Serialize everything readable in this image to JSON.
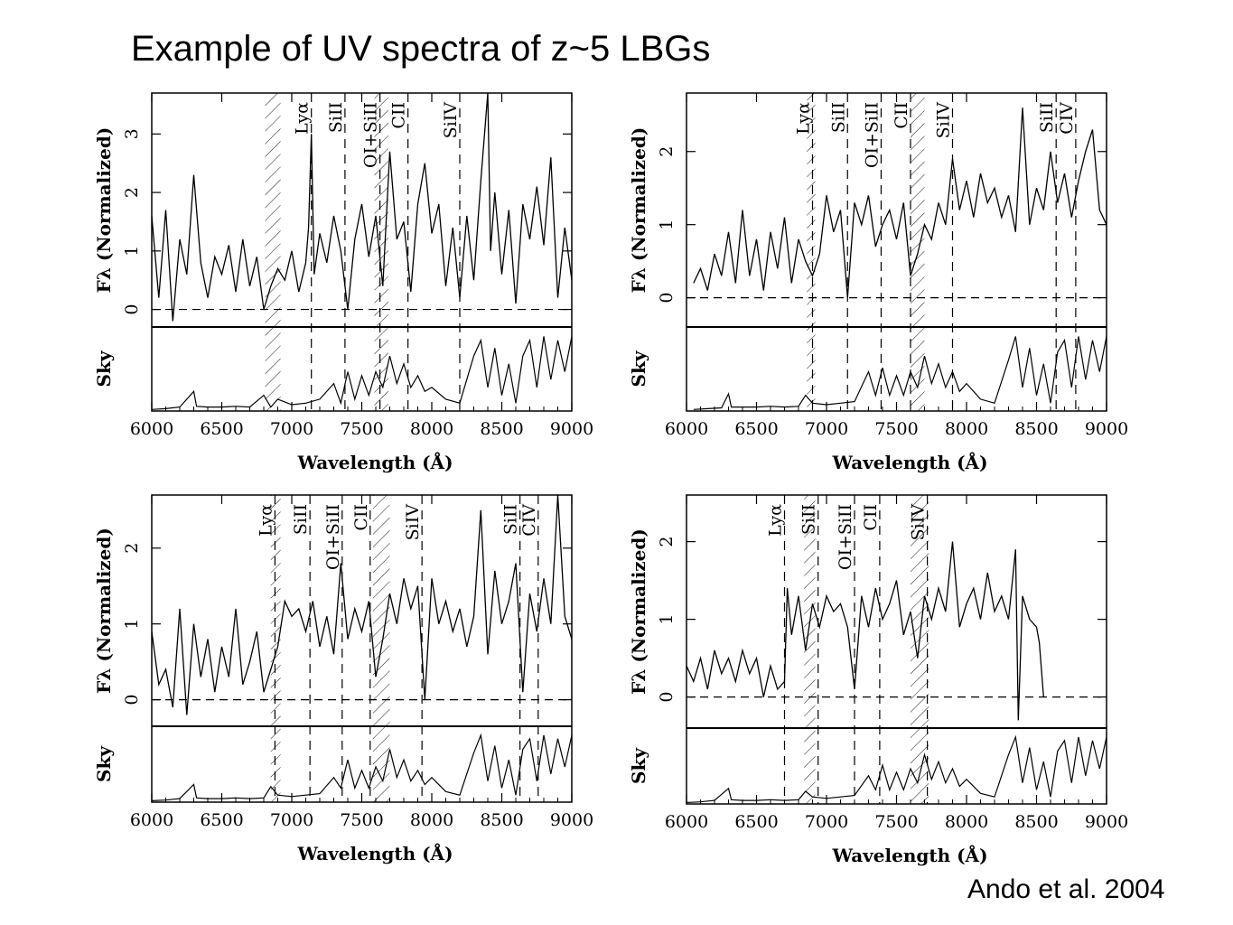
{
  "title": "Example of UV spectra of z~5 LBGs",
  "credit": "Ando et al. 2004",
  "colors": {
    "line": "#000000",
    "background": "#ffffff"
  },
  "chart_data": [
    {
      "type": "line",
      "panel": "top-left",
      "xlabel": "Wavelength (Å)",
      "ylabel": "Fλ (Normalized)",
      "sky_label": "Sky",
      "xlim": [
        6000,
        9000
      ],
      "ylim": [
        -0.3,
        3.7
      ],
      "xticks": [
        6000,
        6500,
        7000,
        7500,
        8000,
        8500,
        9000
      ],
      "yticks": [
        0,
        1,
        2,
        3
      ],
      "absorption_lines": [
        {
          "label": "Lyα",
          "x": 7140
        },
        {
          "label": "SiII",
          "x": 7380
        },
        {
          "label": "OI+SiII",
          "x": 7630
        },
        {
          "label": "CII",
          "x": 7830
        },
        {
          "label": "SiIV",
          "x": 8200
        }
      ],
      "sky_bands": [
        [
          6810,
          6920
        ],
        [
          7590,
          7690
        ]
      ],
      "flux": {
        "x": [
          6000,
          6050,
          6100,
          6150,
          6200,
          6250,
          6300,
          6350,
          6400,
          6450,
          6500,
          6550,
          6600,
          6650,
          6700,
          6750,
          6800,
          6850,
          6900,
          6950,
          7000,
          7050,
          7100,
          7120,
          7140,
          7160,
          7200,
          7250,
          7300,
          7350,
          7400,
          7450,
          7500,
          7550,
          7600,
          7650,
          7700,
          7750,
          7800,
          7850,
          7900,
          7950,
          8000,
          8050,
          8100,
          8150,
          8200,
          8250,
          8300,
          8350,
          8400,
          8420,
          8450,
          8500,
          8550,
          8600,
          8650,
          8700,
          8750,
          8800,
          8850,
          8900,
          8950,
          9000
        ],
        "y": [
          1.6,
          0.2,
          1.7,
          -0.2,
          1.2,
          0.6,
          2.3,
          0.8,
          0.2,
          0.9,
          0.6,
          1.1,
          0.3,
          1.2,
          0.4,
          0.9,
          0.0,
          0.4,
          0.7,
          0.5,
          1.0,
          0.3,
          0.8,
          1.4,
          3.0,
          0.6,
          1.3,
          0.8,
          1.6,
          1.0,
          0.0,
          1.2,
          1.8,
          0.9,
          1.6,
          0.4,
          2.7,
          1.2,
          1.5,
          0.3,
          1.8,
          2.5,
          1.3,
          1.8,
          0.4,
          1.4,
          0.2,
          1.6,
          0.5,
          2.2,
          3.7,
          1.0,
          2.0,
          0.6,
          1.7,
          0.1,
          1.8,
          1.2,
          2.1,
          1.1,
          2.6,
          0.2,
          1.4,
          0.5
        ]
      },
      "sky": {
        "x": [
          6000,
          6100,
          6200,
          6300,
          6320,
          6400,
          6500,
          6600,
          6700,
          6800,
          6850,
          6900,
          7000,
          7100,
          7200,
          7300,
          7350,
          7400,
          7450,
          7500,
          7550,
          7600,
          7650,
          7700,
          7750,
          7800,
          7850,
          7900,
          7950,
          8000,
          8100,
          8200,
          8300,
          8350,
          8400,
          8450,
          8500,
          8550,
          8600,
          8650,
          8700,
          8750,
          8800,
          8850,
          8900,
          8950,
          9000
        ],
        "y": [
          0.02,
          0.03,
          0.05,
          0.25,
          0.06,
          0.05,
          0.05,
          0.06,
          0.05,
          0.2,
          0.05,
          0.15,
          0.08,
          0.1,
          0.15,
          0.35,
          0.1,
          0.5,
          0.15,
          0.45,
          0.2,
          0.5,
          0.3,
          0.7,
          0.35,
          0.6,
          0.3,
          0.45,
          0.25,
          0.3,
          0.15,
          0.1,
          0.7,
          0.9,
          0.3,
          0.8,
          0.2,
          0.6,
          0.1,
          0.7,
          0.9,
          0.3,
          0.95,
          0.4,
          0.9,
          0.5,
          0.95
        ]
      }
    },
    {
      "type": "line",
      "panel": "top-right",
      "xlabel": "Wavelength (Å)",
      "ylabel": "Fλ (Normalized)",
      "sky_label": "Sky",
      "xlim": [
        6000,
        9000
      ],
      "ylim": [
        -0.4,
        2.8
      ],
      "xticks": [
        6000,
        6500,
        7000,
        7500,
        8000,
        8500,
        9000
      ],
      "yticks": [
        0,
        1,
        2
      ],
      "absorption_lines": [
        {
          "label": "Lyα",
          "x": 6900
        },
        {
          "label": "SiII",
          "x": 7150
        },
        {
          "label": "OI+SiII",
          "x": 7390
        },
        {
          "label": "CII",
          "x": 7600
        },
        {
          "label": "SiIV",
          "x": 7900
        },
        {
          "label": "SiII",
          "x": 8640
        },
        {
          "label": "CIV",
          "x": 8780
        }
      ],
      "sky_bands": [
        [
          6860,
          6920
        ],
        [
          7600,
          7700
        ]
      ],
      "flux": {
        "x": [
          6050,
          6100,
          6150,
          6200,
          6250,
          6300,
          6350,
          6400,
          6450,
          6500,
          6550,
          6600,
          6650,
          6700,
          6750,
          6800,
          6850,
          6900,
          6950,
          7000,
          7050,
          7100,
          7150,
          7200,
          7250,
          7300,
          7350,
          7400,
          7450,
          7500,
          7550,
          7600,
          7650,
          7700,
          7750,
          7800,
          7850,
          7900,
          7950,
          8000,
          8050,
          8100,
          8150,
          8200,
          8250,
          8300,
          8350,
          8400,
          8450,
          8500,
          8550,
          8600,
          8650,
          8700,
          8750,
          8800,
          8850,
          8900,
          8950,
          9000
        ],
        "y": [
          0.2,
          0.4,
          0.1,
          0.6,
          0.3,
          0.9,
          0.2,
          1.2,
          0.3,
          0.8,
          0.1,
          0.9,
          0.4,
          1.1,
          0.2,
          0.8,
          0.5,
          0.3,
          0.6,
          1.4,
          0.9,
          1.2,
          0.0,
          1.3,
          1.0,
          1.4,
          0.7,
          1.0,
          1.2,
          0.8,
          1.3,
          0.3,
          0.6,
          1.0,
          0.8,
          1.3,
          1.0,
          1.9,
          1.2,
          1.6,
          1.1,
          1.7,
          1.3,
          1.5,
          1.1,
          1.4,
          0.9,
          2.6,
          1.0,
          1.5,
          1.2,
          2.0,
          1.3,
          1.7,
          1.1,
          1.6,
          2.0,
          2.3,
          1.2,
          1.0
        ]
      },
      "sky": {
        "x": [
          6050,
          6150,
          6250,
          6300,
          6320,
          6400,
          6500,
          6600,
          6700,
          6800,
          6850,
          6900,
          7000,
          7100,
          7200,
          7300,
          7350,
          7400,
          7450,
          7500,
          7550,
          7600,
          7650,
          7700,
          7750,
          7800,
          7850,
          7900,
          7950,
          8000,
          8100,
          8200,
          8300,
          8350,
          8400,
          8450,
          8500,
          8550,
          8600,
          8650,
          8700,
          8750,
          8800,
          8850,
          8900,
          8950,
          9000
        ],
        "y": [
          0.02,
          0.03,
          0.04,
          0.22,
          0.05,
          0.05,
          0.05,
          0.06,
          0.05,
          0.06,
          0.2,
          0.1,
          0.08,
          0.1,
          0.12,
          0.5,
          0.2,
          0.55,
          0.2,
          0.45,
          0.2,
          0.5,
          0.3,
          0.7,
          0.35,
          0.6,
          0.3,
          0.5,
          0.25,
          0.35,
          0.15,
          0.1,
          0.65,
          0.95,
          0.3,
          0.8,
          0.2,
          0.6,
          0.1,
          0.75,
          0.9,
          0.3,
          0.95,
          0.4,
          0.9,
          0.5,
          0.95
        ]
      }
    },
    {
      "type": "line",
      "panel": "bottom-left",
      "xlabel": "Wavelength (Å)",
      "ylabel": "Fλ (Normalized)",
      "sky_label": "Sky",
      "xlim": [
        6000,
        9000
      ],
      "ylim": [
        -0.35,
        2.7
      ],
      "xticks": [
        6000,
        6500,
        7000,
        7500,
        8000,
        8500,
        9000
      ],
      "yticks": [
        0,
        1,
        2
      ],
      "absorption_lines": [
        {
          "label": "Lyα",
          "x": 6880
        },
        {
          "label": "SiII",
          "x": 7130
        },
        {
          "label": "OI+SiII",
          "x": 7360
        },
        {
          "label": "CII",
          "x": 7560
        },
        {
          "label": "SiIV",
          "x": 7930
        },
        {
          "label": "SiII",
          "x": 8630
        },
        {
          "label": "CIV",
          "x": 8760
        }
      ],
      "sky_bands": [
        [
          6850,
          6920
        ],
        [
          7580,
          7700
        ]
      ],
      "flux": {
        "x": [
          6000,
          6050,
          6100,
          6150,
          6200,
          6250,
          6300,
          6350,
          6400,
          6450,
          6500,
          6550,
          6600,
          6650,
          6700,
          6750,
          6800,
          6850,
          6900,
          6950,
          7000,
          7050,
          7100,
          7150,
          7200,
          7250,
          7300,
          7350,
          7400,
          7450,
          7500,
          7550,
          7600,
          7650,
          7700,
          7750,
          7800,
          7850,
          7900,
          7950,
          8000,
          8050,
          8100,
          8150,
          8200,
          8250,
          8300,
          8350,
          8400,
          8450,
          8500,
          8550,
          8600,
          8650,
          8700,
          8750,
          8800,
          8850,
          8900,
          8950,
          9000
        ],
        "y": [
          0.9,
          0.2,
          0.4,
          -0.1,
          1.2,
          -0.2,
          1.0,
          0.3,
          0.8,
          0.1,
          0.7,
          0.3,
          1.2,
          0.2,
          0.5,
          0.9,
          0.1,
          0.4,
          0.7,
          1.3,
          1.1,
          1.2,
          0.9,
          1.3,
          0.7,
          1.1,
          0.6,
          1.8,
          0.8,
          1.2,
          0.9,
          1.3,
          0.3,
          0.8,
          1.4,
          1.0,
          1.6,
          1.2,
          1.5,
          0.0,
          1.6,
          1.0,
          1.3,
          0.9,
          1.2,
          0.7,
          1.1,
          2.5,
          0.6,
          1.7,
          1.0,
          1.3,
          1.8,
          0.1,
          1.4,
          0.9,
          1.6,
          1.0,
          2.7,
          1.1,
          0.8
        ]
      },
      "sky": {
        "x": [
          6000,
          6100,
          6200,
          6300,
          6320,
          6400,
          6500,
          6600,
          6700,
          6800,
          6850,
          6900,
          7000,
          7100,
          7200,
          7300,
          7350,
          7400,
          7450,
          7500,
          7550,
          7600,
          7650,
          7700,
          7750,
          7800,
          7850,
          7900,
          7950,
          8000,
          8100,
          8200,
          8300,
          8350,
          8400,
          8450,
          8500,
          8550,
          8600,
          8650,
          8700,
          8750,
          8800,
          8850,
          8900,
          8950,
          9000
        ],
        "y": [
          0.02,
          0.03,
          0.05,
          0.25,
          0.06,
          0.05,
          0.05,
          0.06,
          0.05,
          0.06,
          0.22,
          0.1,
          0.08,
          0.1,
          0.12,
          0.35,
          0.2,
          0.6,
          0.2,
          0.45,
          0.2,
          0.5,
          0.3,
          0.75,
          0.35,
          0.6,
          0.3,
          0.45,
          0.25,
          0.35,
          0.15,
          0.1,
          0.7,
          0.95,
          0.3,
          0.8,
          0.2,
          0.6,
          0.1,
          0.75,
          0.9,
          0.3,
          0.95,
          0.4,
          0.9,
          0.5,
          0.95
        ]
      }
    },
    {
      "type": "line",
      "panel": "bottom-right",
      "xlabel": "Wavelength (Å)",
      "ylabel": "Fλ (Normalized)",
      "sky_label": "Sky",
      "xlim": [
        6000,
        9000
      ],
      "ylim": [
        -0.4,
        2.6
      ],
      "xticks": [
        6000,
        6500,
        7000,
        7500,
        8000,
        8500,
        9000
      ],
      "yticks": [
        0,
        1,
        2
      ],
      "absorption_lines": [
        {
          "label": "Lyα",
          "x": 6700
        },
        {
          "label": "SiII",
          "x": 6940
        },
        {
          "label": "OI+SiII",
          "x": 7200
        },
        {
          "label": "CII",
          "x": 7380
        },
        {
          "label": "SiIV",
          "x": 7720
        }
      ],
      "sky_bands": [
        [
          6840,
          6920
        ],
        [
          7600,
          7730
        ]
      ],
      "flux": {
        "x": [
          6000,
          6050,
          6100,
          6150,
          6200,
          6250,
          6300,
          6350,
          6400,
          6450,
          6500,
          6550,
          6600,
          6650,
          6700,
          6720,
          6750,
          6800,
          6850,
          6900,
          6950,
          7000,
          7050,
          7100,
          7150,
          7200,
          7250,
          7300,
          7350,
          7400,
          7450,
          7500,
          7550,
          7600,
          7650,
          7700,
          7750,
          7800,
          7850,
          7900,
          7950,
          8000,
          8050,
          8100,
          8150,
          8200,
          8250,
          8300,
          8350,
          8370,
          8400,
          8450,
          8500,
          8520,
          8550
        ],
        "y": [
          0.4,
          0.2,
          0.5,
          0.1,
          0.6,
          0.3,
          0.5,
          0.2,
          0.6,
          0.3,
          0.5,
          0.0,
          0.4,
          0.1,
          0.2,
          1.4,
          0.8,
          1.3,
          0.6,
          1.2,
          0.9,
          1.3,
          1.1,
          1.2,
          0.9,
          0.1,
          1.3,
          0.9,
          1.4,
          1.0,
          1.2,
          1.5,
          0.8,
          1.1,
          0.5,
          1.3,
          1.0,
          1.4,
          1.1,
          2.0,
          0.9,
          1.2,
          1.4,
          1.0,
          1.6,
          1.1,
          1.3,
          1.0,
          1.9,
          -0.3,
          1.3,
          1.0,
          0.9,
          0.7,
          0.0
        ]
      },
      "sky": {
        "x": [
          6000,
          6100,
          6200,
          6300,
          6320,
          6400,
          6500,
          6600,
          6700,
          6800,
          6850,
          6900,
          7000,
          7100,
          7200,
          7300,
          7350,
          7400,
          7450,
          7500,
          7550,
          7600,
          7650,
          7700,
          7750,
          7800,
          7850,
          7900,
          7950,
          8000,
          8100,
          8200,
          8300,
          8350,
          8400,
          8450,
          8500,
          8550,
          8600,
          8650,
          8700,
          8750,
          8800,
          8850,
          8900,
          8950,
          9000
        ],
        "y": [
          0.02,
          0.03,
          0.05,
          0.22,
          0.06,
          0.05,
          0.05,
          0.06,
          0.05,
          0.06,
          0.18,
          0.1,
          0.08,
          0.1,
          0.12,
          0.4,
          0.2,
          0.55,
          0.2,
          0.45,
          0.2,
          0.5,
          0.3,
          0.7,
          0.35,
          0.6,
          0.3,
          0.5,
          0.25,
          0.35,
          0.15,
          0.1,
          0.7,
          0.95,
          0.3,
          0.8,
          0.2,
          0.6,
          0.1,
          0.75,
          0.9,
          0.3,
          0.95,
          0.4,
          0.9,
          0.5,
          0.95
        ]
      }
    }
  ]
}
